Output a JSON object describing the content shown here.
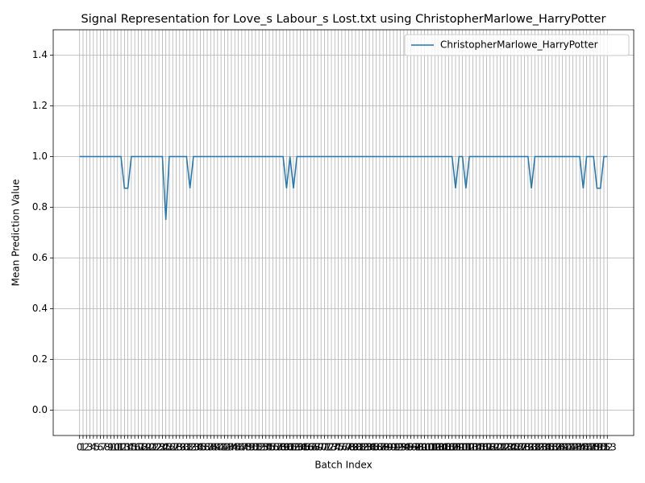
{
  "chart_data": {
    "type": "line",
    "title": "Signal Representation for Love_s Labour_s Lost.txt using ChristopherMarlowe_HarryPotter",
    "xlabel": "Batch Index",
    "ylabel": "Mean Prediction Value",
    "x": [
      0,
      1,
      2,
      3,
      4,
      5,
      6,
      7,
      8,
      9,
      10,
      11,
      12,
      13,
      14,
      15,
      16,
      17,
      18,
      19,
      20,
      21,
      22,
      23,
      24,
      25,
      26,
      27,
      28,
      29,
      30,
      31,
      32,
      33,
      34,
      35,
      36,
      37,
      38,
      39,
      40,
      41,
      42,
      43,
      44,
      45,
      46,
      47,
      48,
      49,
      50,
      51,
      52,
      53,
      54,
      55,
      56,
      57,
      58,
      59,
      60,
      61,
      62,
      63,
      64,
      65,
      66,
      67,
      68,
      69,
      70,
      71,
      72,
      73,
      74,
      75,
      76,
      77,
      78,
      79,
      80,
      81,
      82,
      83,
      84,
      85,
      86,
      87,
      88,
      89,
      90,
      91,
      92,
      93,
      94,
      95,
      96,
      97,
      98,
      99,
      100,
      101,
      102,
      103,
      104,
      105,
      106,
      107,
      108,
      109,
      110,
      111,
      112,
      113,
      114,
      115,
      116,
      117,
      118,
      119,
      120,
      121,
      122,
      123,
      124,
      125,
      126,
      127,
      128,
      129,
      130,
      131,
      132,
      133,
      134,
      135,
      136,
      137,
      138,
      139,
      140,
      141,
      142,
      143,
      144,
      145,
      146,
      147,
      148,
      149,
      150,
      151,
      152,
      153
    ],
    "series": [
      {
        "name": "ChristopherMarlowe_HarryPotter",
        "color": "#1f77b4",
        "values": [
          1,
          1,
          1,
          1,
          1,
          1,
          1,
          1,
          1,
          1,
          1,
          1,
          1,
          0.875,
          0.875,
          1,
          1,
          1,
          1,
          1,
          1,
          1,
          1,
          1,
          1,
          0.75,
          1,
          1,
          1,
          1,
          1,
          1,
          0.875,
          1,
          1,
          1,
          1,
          1,
          1,
          1,
          1,
          1,
          1,
          1,
          1,
          1,
          1,
          1,
          1,
          1,
          1,
          1,
          1,
          1,
          1,
          1,
          1,
          1,
          1,
          1,
          0.875,
          1,
          0.875,
          1,
          1,
          1,
          1,
          1,
          1,
          1,
          1,
          1,
          1,
          1,
          1,
          1,
          1,
          1,
          1,
          1,
          1,
          1,
          1,
          1,
          1,
          1,
          1,
          1,
          1,
          1,
          1,
          1,
          1,
          1,
          1,
          1,
          1,
          1,
          1,
          1,
          1,
          1,
          1,
          1,
          1,
          1,
          1,
          1,
          1,
          0.875,
          1,
          1,
          0.875,
          1,
          1,
          1,
          1,
          1,
          1,
          1,
          1,
          1,
          1,
          1,
          1,
          1,
          1,
          1,
          1,
          1,
          1,
          0.875,
          1,
          1,
          1,
          1,
          1,
          1,
          1,
          1,
          1,
          1,
          1,
          1,
          1,
          1,
          0.875,
          1,
          1,
          1,
          0.875,
          0.875,
          1,
          1
        ]
      }
    ],
    "xlim": [
      -7.65,
      160.65
    ],
    "xticks": [
      0,
      1,
      2,
      3,
      4,
      5,
      6,
      7,
      8,
      9,
      10,
      11,
      12,
      13,
      14,
      15,
      16,
      17,
      18,
      19,
      20,
      21,
      22,
      23,
      24,
      25,
      26,
      27,
      28,
      29,
      30,
      31,
      32,
      33,
      34,
      35,
      36,
      37,
      38,
      39,
      40,
      41,
      42,
      43,
      44,
      45,
      46,
      47,
      48,
      49,
      50,
      51,
      52,
      53,
      54,
      55,
      56,
      57,
      58,
      59,
      60,
      61,
      62,
      63,
      64,
      65,
      66,
      67,
      68,
      69,
      70,
      71,
      72,
      73,
      74,
      75,
      76,
      77,
      78,
      79,
      80,
      81,
      82,
      83,
      84,
      85,
      86,
      87,
      88,
      89,
      90,
      91,
      92,
      93,
      94,
      95,
      96,
      97,
      98,
      99,
      100,
      101,
      102,
      103,
      104,
      105,
      106,
      107,
      108,
      109,
      110,
      111,
      112,
      113,
      114,
      115,
      116,
      117,
      118,
      119,
      120,
      121,
      122,
      123,
      124,
      125,
      126,
      127,
      128,
      129,
      130,
      131,
      132,
      133,
      134,
      135,
      136,
      137,
      138,
      139,
      140,
      141,
      142,
      143,
      144,
      145,
      146,
      147,
      148,
      149,
      150,
      151,
      152,
      153
    ],
    "ylim": [
      -0.1,
      1.5
    ],
    "yticks": [
      {
        "value": 0,
        "label": "0.0"
      },
      {
        "value": 0.2,
        "label": "0.2"
      },
      {
        "value": 0.4,
        "label": "0.4"
      },
      {
        "value": 0.6,
        "label": "0.6"
      },
      {
        "value": 0.8,
        "label": "0.8"
      },
      {
        "value": 1.0,
        "label": "1.0"
      },
      {
        "value": 1.2,
        "label": "1.2"
      },
      {
        "value": 1.4,
        "label": "1.4"
      }
    ],
    "grid": true,
    "legend": "upper right"
  }
}
